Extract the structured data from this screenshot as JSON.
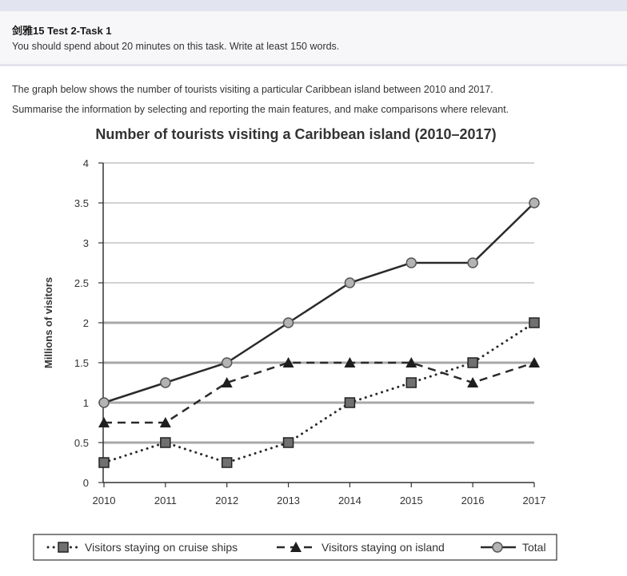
{
  "task": {
    "title": "剑雅15   Test 2-Task 1",
    "instruction": "You should spend about 20 minutes on this task. Write at least 150 words."
  },
  "prompt": {
    "line1": "The graph below shows the number of tourists visiting a particular Caribbean island between 2010 and 2017.",
    "line2": "Summarise the information by selecting and reporting the main features, and make comparisons where relevant."
  },
  "chart_data": {
    "type": "line",
    "title": "Number of tourists visiting a Caribbean island (2010–2017)",
    "xlabel": "",
    "ylabel": "Millions of visitors",
    "x": [
      "2010",
      "2011",
      "2012",
      "2013",
      "2014",
      "2015",
      "2016",
      "2017"
    ],
    "ylim": [
      0,
      4
    ],
    "yticks": [
      "0",
      "0.5",
      "1",
      "1.5",
      "2",
      "2.5",
      "3",
      "3.5",
      "4"
    ],
    "grid": true,
    "legend_position": "bottom",
    "series": [
      {
        "name": "Visitors staying on cruise ships",
        "values": [
          0.25,
          0.5,
          0.25,
          0.5,
          1,
          1.25,
          1.5,
          2
        ],
        "marker": "square",
        "line": "dotted"
      },
      {
        "name": "Visitors staying on island",
        "values": [
          0.75,
          0.75,
          1.25,
          1.5,
          1.5,
          1.5,
          1.25,
          1.5
        ],
        "marker": "triangle",
        "line": "dashed"
      },
      {
        "name": "Total",
        "values": [
          1,
          1.25,
          1.5,
          2,
          2.5,
          2.75,
          2.75,
          3.5
        ],
        "marker": "circle",
        "line": "solid"
      }
    ]
  }
}
